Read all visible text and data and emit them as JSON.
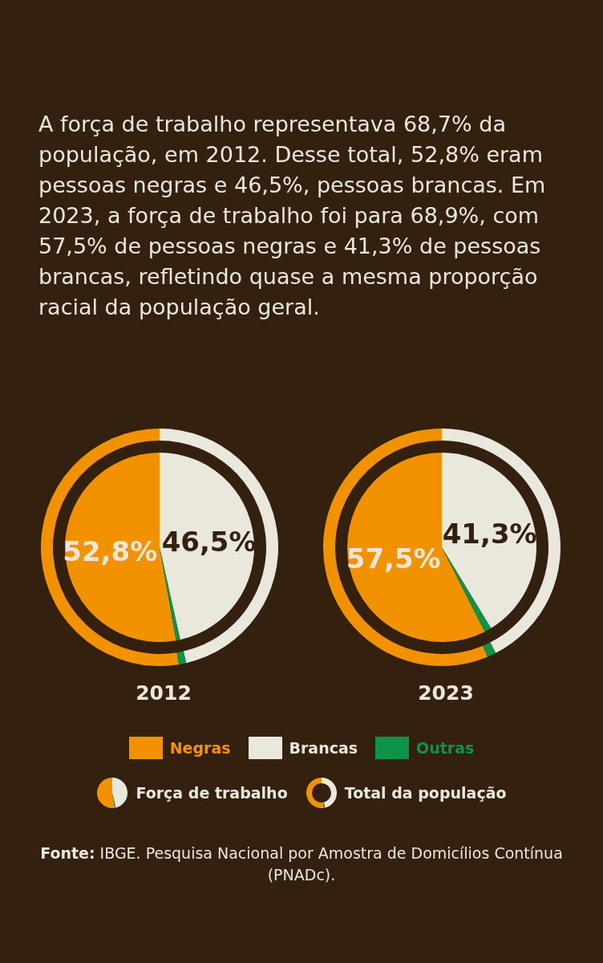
{
  "chart_data": [
    {
      "type": "other",
      "title": "A força de trabalho representava 68,7% da população, em 2012. Desse total, 52,8% eram pessoas negras e 46,5%, pessoas brancas. Em 2023, a força de trabalho foi para 68,9%, com 57,5% de pessoas negras e 41,3% de pessoas brancas, refletindo quase a mesma proporção racial da população geral."
    },
    {
      "type": "pie",
      "title": "2012",
      "categories": [
        "Negras",
        "Brancas",
        "Outras"
      ],
      "colors": [
        "#f39200",
        "#eae8dc",
        "#0e9449"
      ],
      "legend": "bottom",
      "series": [
        {
          "name": "Força de trabalho",
          "values": [
            52.8,
            46.5,
            0.7
          ],
          "value_labels": [
            "52,8%",
            "46,5%",
            null
          ]
        },
        {
          "name": "Total da população",
          "type": "donut",
          "values": [
            52.6,
            46.4,
            1.0
          ]
        }
      ]
    },
    {
      "type": "pie",
      "title": "2023",
      "categories": [
        null,
        null,
        null
      ],
      "colors": [
        "#f39200",
        "#eae8dc",
        "#0e9449"
      ],
      "series": [
        {
          "values": [
            57.5,
            41.3,
            1.2
          ],
          "value_labels": [
            "57,5%",
            "41,3%",
            null
          ]
        },
        {
          "type": "donut",
          "values": [
            56.3,
            42.5,
            1.2
          ]
        }
      ]
    },
    {
      "type": "other",
      "annotations": [
        "Fonte: IBGE. Pesquisa Nacional por Amostra de Domicílios Contínua (PNADc)."
      ]
    }
  ]
}
